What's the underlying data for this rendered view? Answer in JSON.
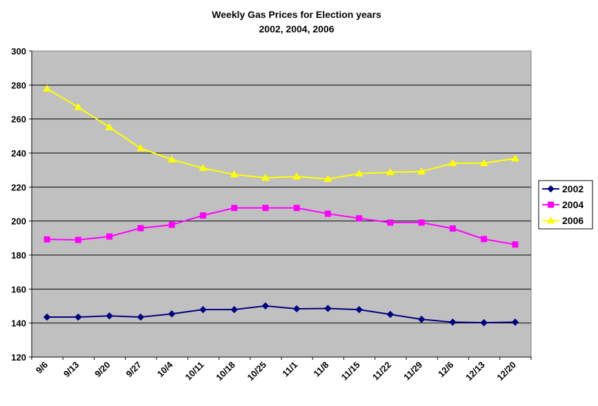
{
  "chart_data": {
    "type": "line",
    "title": "Weekly Gas Prices for  Election years",
    "subtitle": "2002, 2004, 2006",
    "xlabel": "",
    "ylabel": "",
    "categories": [
      "9/6",
      "9/13",
      "9/20",
      "9/27",
      "10/4",
      "10/11",
      "10/18",
      "10/25",
      "11/1",
      "11/8",
      "11/15",
      "11/22",
      "11/29",
      "12/6",
      "12/13",
      "12/20"
    ],
    "ylim": [
      120,
      300
    ],
    "yticks": [
      120,
      140,
      160,
      180,
      200,
      220,
      240,
      260,
      280,
      300
    ],
    "grid": true,
    "legend_position": "right",
    "plot_background": "#c0c0c0",
    "series": [
      {
        "name": "2002",
        "color": "#000080",
        "marker": "diamond",
        "values": [
          143.5,
          143.5,
          144.2,
          143.5,
          145.4,
          147.9,
          147.9,
          150.1,
          148.4,
          148.6,
          147.9,
          145.1,
          142.2,
          140.5,
          140.2,
          140.5
        ]
      },
      {
        "name": "2004",
        "color": "#ff00ff",
        "marker": "square",
        "values": [
          189.2,
          188.9,
          190.9,
          195.8,
          197.8,
          203.3,
          207.7,
          207.7,
          207.7,
          204.3,
          201.6,
          199.1,
          199.1,
          195.6,
          189.4,
          186.2
        ]
      },
      {
        "name": "2006",
        "color": "#ffff00",
        "marker": "triangle",
        "values": [
          277.8,
          267.0,
          255.2,
          242.8,
          236.2,
          231.1,
          227.4,
          225.4,
          226.2,
          224.7,
          227.9,
          228.7,
          229.1,
          234.0,
          234.0,
          236.8
        ]
      }
    ]
  }
}
